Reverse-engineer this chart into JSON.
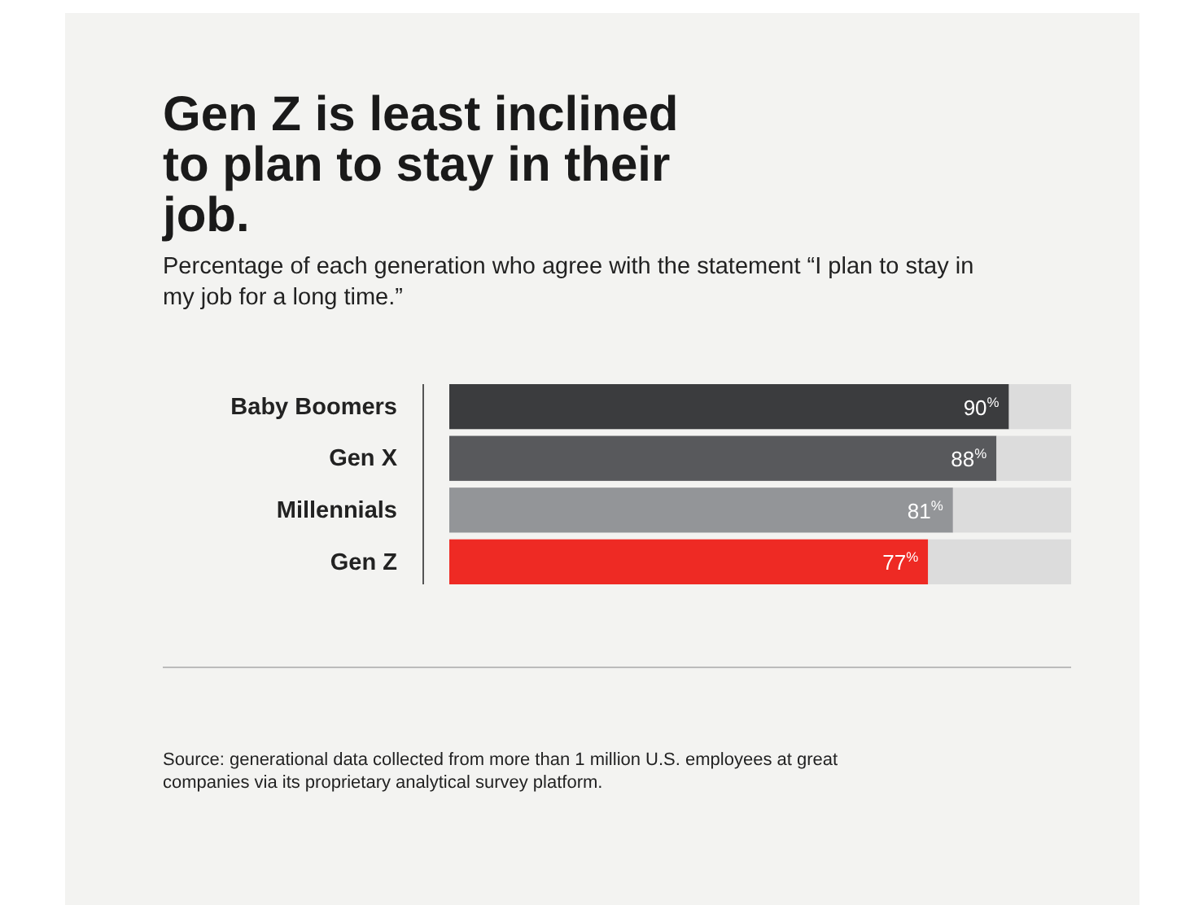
{
  "chart_data": {
    "type": "bar",
    "orientation": "horizontal",
    "stacked": true,
    "title": "Gen Z is least inclined to plan to stay in their job.",
    "subtitle": "Percentage of each generation who agree with the statement “I plan to stay in my job for a long time.”",
    "categories": [
      "Baby Boomers",
      "Gen X",
      "Millennials",
      "Gen Z"
    ],
    "series": [
      {
        "colors": [
          "#3b3c3e",
          "#58595c",
          "#939598",
          "#ee2a24"
        ],
        "values": [
          90,
          88,
          81,
          77
        ],
        "value_labels": [
          "90$^{%}$",
          "88$^{%}$",
          "81$^{%}$",
          "77$^{%}$"
        ]
      },
      {
        "color": "#dcdcdc",
        "values": [
          10,
          12,
          19,
          23
        ]
      }
    ],
    "xlim": [
      0,
      100
    ],
    "annotations": [
      "Source: generational data collected from more than 1 million U.S. employees at great companies via its proprietary analytical survey platform."
    ]
  }
}
